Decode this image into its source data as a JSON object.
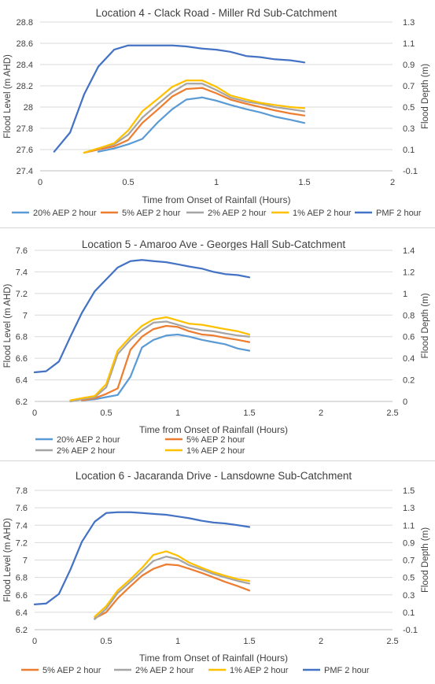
{
  "series_styles": {
    "20% AEP 2 hour": "#5b9bd5",
    "5% AEP 2 hour": "#ed7d31",
    "2% AEP 2 hour": "#a5a5a5",
    "1% AEP 2 hour": "#ffc000",
    "PMF 2 hour": "#4472c4"
  },
  "chart_data": [
    {
      "type": "line",
      "title": "Location 4 - Clack Road - Miller Rd Sub-Catchment",
      "xlabel": "Time from Onset of Rainfall (Hours)",
      "ylabel": "Flood Level (m AHD)",
      "y2label": "Flood Depth (m)",
      "xlim": [
        0,
        2
      ],
      "x_ticks": [
        "0",
        "0.5",
        "1",
        "1.5",
        "2"
      ],
      "ylim": [
        27.4,
        28.8
      ],
      "y_ticks": [
        "27.4",
        "27.6",
        "27.8",
        "28",
        "28.2",
        "28.4",
        "28.6",
        "28.8"
      ],
      "y2lim": [
        -0.1,
        1.3
      ],
      "y2_ticks": [
        "-0.1",
        "0.1",
        "0.3",
        "0.5",
        "0.7",
        "0.9",
        "1.1",
        "1.3"
      ],
      "grid": true,
      "legend_position": "bottom",
      "series": [
        {
          "name": "20% AEP 2 hour",
          "axis": "left",
          "x": [
            0.33,
            0.42,
            0.5,
            0.58,
            0.67,
            0.75,
            0.83,
            0.92,
            1.0,
            1.08,
            1.17,
            1.25,
            1.33,
            1.42,
            1.5
          ],
          "y": [
            27.58,
            27.61,
            27.65,
            27.7,
            27.86,
            27.98,
            28.07,
            28.09,
            28.06,
            28.02,
            27.98,
            27.95,
            27.91,
            27.88,
            27.85
          ]
        },
        {
          "name": "5% AEP 2 hour",
          "axis": "left",
          "x": [
            0.25,
            0.33,
            0.42,
            0.5,
            0.58,
            0.67,
            0.75,
            0.83,
            0.92,
            1.0,
            1.08,
            1.17,
            1.25,
            1.33,
            1.42,
            1.5
          ],
          "y": [
            27.57,
            27.6,
            27.63,
            27.69,
            27.85,
            27.98,
            28.1,
            28.17,
            28.18,
            28.13,
            28.07,
            28.03,
            28.0,
            27.97,
            27.94,
            27.92
          ]
        },
        {
          "name": "2% AEP 2 hour",
          "axis": "left",
          "x": [
            0.25,
            0.33,
            0.42,
            0.5,
            0.58,
            0.67,
            0.75,
            0.83,
            0.92,
            1.0,
            1.08,
            1.17,
            1.25,
            1.33,
            1.42,
            1.5
          ],
          "y": [
            27.57,
            27.61,
            27.65,
            27.74,
            27.9,
            28.03,
            28.14,
            28.22,
            28.22,
            28.16,
            28.09,
            28.05,
            28.03,
            28.0,
            27.98,
            27.96
          ]
        },
        {
          "name": "1% AEP 2 hour",
          "axis": "left",
          "x": [
            0.25,
            0.33,
            0.42,
            0.5,
            0.58,
            0.67,
            0.75,
            0.83,
            0.92,
            1.0,
            1.08,
            1.17,
            1.25,
            1.33,
            1.42,
            1.5
          ],
          "y": [
            27.57,
            27.61,
            27.66,
            27.78,
            27.96,
            28.08,
            28.19,
            28.25,
            28.25,
            28.19,
            28.11,
            28.07,
            28.04,
            28.02,
            28.0,
            27.99
          ]
        },
        {
          "name": "PMF 2 hour",
          "axis": "right",
          "x": [
            0.08,
            0.17,
            0.25,
            0.33,
            0.42,
            0.5,
            0.58,
            0.67,
            0.75,
            0.83,
            0.92,
            1.0,
            1.08,
            1.17,
            1.25,
            1.33,
            1.42,
            1.5
          ],
          "y": [
            0.08,
            0.26,
            0.62,
            0.88,
            1.04,
            1.08,
            1.08,
            1.08,
            1.08,
            1.07,
            1.05,
            1.04,
            1.02,
            0.98,
            0.97,
            0.95,
            0.94,
            0.92
          ]
        }
      ]
    },
    {
      "type": "line",
      "title": "Location 5 - Amaroo Ave - Georges Hall Sub-Catchment",
      "xlabel": "Time from Onset of Rainfall (Hours)",
      "ylabel": "Flood Level (m AHD)",
      "y2label": "Flood Depth (m)",
      "xlim": [
        0,
        2.5
      ],
      "x_ticks": [
        "0",
        "0.5",
        "1",
        "1.5",
        "2",
        "2.5"
      ],
      "ylim": [
        6.2,
        7.6
      ],
      "y_ticks": [
        "6.2",
        "6.4",
        "6.6",
        "6.8",
        "7",
        "7.2",
        "7.4",
        "7.6"
      ],
      "y2lim": [
        0,
        1.4
      ],
      "y2_ticks": [
        "0",
        "0.2",
        "0.4",
        "0.6",
        "0.8",
        "1",
        "1.2",
        "1.4"
      ],
      "grid": true,
      "legend_position": "bottom",
      "series": [
        {
          "name": "20% AEP 2 hour",
          "axis": "left",
          "x": [
            0.33,
            0.42,
            0.5,
            0.58,
            0.67,
            0.75,
            0.83,
            0.92,
            1.0,
            1.08,
            1.17,
            1.25,
            1.33,
            1.42,
            1.5
          ],
          "y": [
            6.21,
            6.22,
            6.24,
            6.26,
            6.43,
            6.7,
            6.77,
            6.81,
            6.82,
            6.8,
            6.77,
            6.75,
            6.73,
            6.69,
            6.67
          ]
        },
        {
          "name": "5% AEP 2 hour",
          "axis": "left",
          "x": [
            0.33,
            0.42,
            0.5,
            0.58,
            0.67,
            0.75,
            0.83,
            0.92,
            1.0,
            1.08,
            1.17,
            1.25,
            1.33,
            1.42,
            1.5
          ],
          "y": [
            6.21,
            6.23,
            6.27,
            6.32,
            6.68,
            6.8,
            6.87,
            6.9,
            6.89,
            6.85,
            6.82,
            6.81,
            6.79,
            6.77,
            6.75
          ]
        },
        {
          "name": "2% AEP 2 hour",
          "axis": "left",
          "x": [
            0.25,
            0.33,
            0.42,
            0.5,
            0.58,
            0.67,
            0.75,
            0.83,
            0.92,
            1.0,
            1.08,
            1.17,
            1.25,
            1.33,
            1.42,
            1.5
          ],
          "y": [
            6.2,
            6.22,
            6.24,
            6.33,
            6.64,
            6.77,
            6.86,
            6.93,
            6.94,
            6.91,
            6.88,
            6.86,
            6.85,
            6.83,
            6.81,
            6.8
          ]
        },
        {
          "name": "1% AEP 2 hour",
          "axis": "left",
          "x": [
            0.25,
            0.33,
            0.42,
            0.5,
            0.58,
            0.67,
            0.75,
            0.83,
            0.92,
            1.0,
            1.08,
            1.17,
            1.25,
            1.33,
            1.42,
            1.5
          ],
          "y": [
            6.21,
            6.23,
            6.25,
            6.36,
            6.67,
            6.8,
            6.9,
            6.96,
            6.98,
            6.95,
            6.92,
            6.91,
            6.89,
            6.87,
            6.85,
            6.82
          ]
        },
        {
          "name": "PMF 2 hour",
          "axis": "right",
          "x": [
            0.0,
            0.08,
            0.17,
            0.25,
            0.33,
            0.42,
            0.5,
            0.58,
            0.67,
            0.75,
            0.83,
            0.92,
            1.0,
            1.08,
            1.17,
            1.25,
            1.33,
            1.42,
            1.5
          ],
          "y": [
            0.27,
            0.28,
            0.37,
            0.6,
            0.82,
            1.02,
            1.13,
            1.24,
            1.3,
            1.31,
            1.3,
            1.29,
            1.27,
            1.25,
            1.23,
            1.2,
            1.18,
            1.17,
            1.15
          ]
        }
      ]
    },
    {
      "type": "line",
      "title": "Location 6 - Jacaranda Drive - Lansdowne Sub-Catchment",
      "xlabel": "Time from Onset of Rainfall (Hours)",
      "ylabel": "Flood Level (m AHD)",
      "y2label": "Flood Depth (m)",
      "xlim": [
        0,
        2.5
      ],
      "x_ticks": [
        "0",
        "0.5",
        "1",
        "1.5",
        "2",
        "2.5"
      ],
      "ylim": [
        6.2,
        7.8
      ],
      "y_ticks": [
        "6.2",
        "6.4",
        "6.6",
        "6.8",
        "7",
        "7.2",
        "7.4",
        "7.6",
        "7.8"
      ],
      "y2lim": [
        -0.1,
        1.5
      ],
      "y2_ticks": [
        "-0.1",
        "0.1",
        "0.3",
        "0.5",
        "0.7",
        "0.9",
        "1.1",
        "1.3",
        "1.5"
      ],
      "grid": true,
      "legend_position": "bottom",
      "series": [
        {
          "name": "5% AEP 2 hour",
          "axis": "left",
          "x": [
            0.42,
            0.5,
            0.58,
            0.67,
            0.75,
            0.83,
            0.92,
            1.0,
            1.08,
            1.17,
            1.25,
            1.33,
            1.42,
            1.5
          ],
          "y": [
            6.33,
            6.4,
            6.56,
            6.7,
            6.82,
            6.9,
            6.95,
            6.94,
            6.9,
            6.85,
            6.8,
            6.75,
            6.7,
            6.65
          ]
        },
        {
          "name": "2% AEP 2 hour",
          "axis": "left",
          "x": [
            0.42,
            0.5,
            0.58,
            0.67,
            0.75,
            0.83,
            0.92,
            1.0,
            1.08,
            1.17,
            1.25,
            1.33,
            1.42,
            1.5
          ],
          "y": [
            6.32,
            6.44,
            6.62,
            6.75,
            6.87,
            6.99,
            7.04,
            7.01,
            6.94,
            6.89,
            6.84,
            6.8,
            6.76,
            6.73
          ]
        },
        {
          "name": "1% AEP 2 hour",
          "axis": "left",
          "x": [
            0.42,
            0.5,
            0.58,
            0.67,
            0.75,
            0.83,
            0.92,
            1.0,
            1.08,
            1.17,
            1.25,
            1.33,
            1.42,
            1.5
          ],
          "y": [
            6.35,
            6.47,
            6.65,
            6.78,
            6.91,
            7.06,
            7.1,
            7.05,
            6.97,
            6.91,
            6.86,
            6.82,
            6.78,
            6.76
          ]
        },
        {
          "name": "PMF 2 hour",
          "axis": "right",
          "x": [
            0.0,
            0.08,
            0.17,
            0.25,
            0.33,
            0.42,
            0.5,
            0.58,
            0.67,
            0.75,
            0.83,
            0.92,
            1.0,
            1.08,
            1.17,
            1.25,
            1.33,
            1.42,
            1.5
          ],
          "y": [
            0.19,
            0.2,
            0.31,
            0.59,
            0.91,
            1.14,
            1.24,
            1.25,
            1.25,
            1.24,
            1.23,
            1.22,
            1.2,
            1.18,
            1.15,
            1.13,
            1.12,
            1.1,
            1.08
          ]
        }
      ]
    }
  ]
}
